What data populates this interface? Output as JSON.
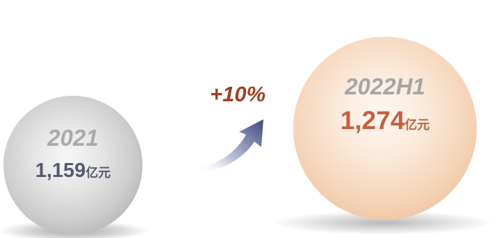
{
  "left": {
    "year": "2021",
    "amount": "1,159",
    "unit": "亿元"
  },
  "right": {
    "year": "2022H1",
    "amount": "1,274",
    "unit": "亿元"
  },
  "growth": "+10%",
  "colors": {
    "left_sphere": "#cdcdcd",
    "right_sphere": "#f5d4b8",
    "left_amount": "#545a72",
    "right_amount": "#c45f3e",
    "year_text": "#a9a9ad",
    "growth_text": "#a23e22",
    "arrow": "#3b4a80"
  }
}
